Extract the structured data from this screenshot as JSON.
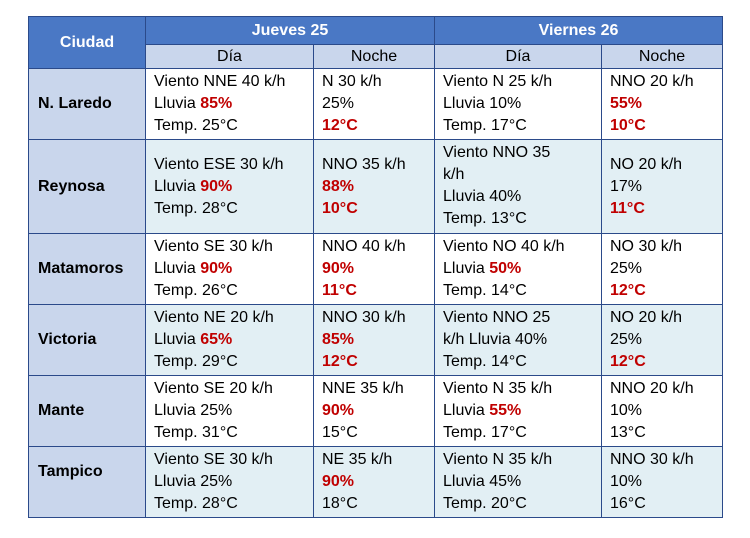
{
  "header": {
    "ciudad": "Ciudad",
    "day1": "Jueves 25",
    "day2": "Viernes 26",
    "dia": "Día",
    "noche": "Noche"
  },
  "rows": [
    {
      "city": "N. Laredo",
      "d1_dia": [
        "Viento  NNE 40 k/h",
        "Lluvia  ",
        "85%",
        "Temp.  25°C"
      ],
      "d1_noche": [
        "N 30 k/h",
        "25%",
        "12°C"
      ],
      "d2_dia": [
        "Viento  N 25 k/h",
        "Lluvia   10%",
        "Temp.  17°C"
      ],
      "d2_noche": [
        "NNO 20 k/h",
        "55%",
        "10°C"
      ]
    },
    {
      "city": "Reynosa",
      "d1_dia": [
        "Viento  ESE 30 k/h",
        "Lluvia  ",
        "90%",
        "Temp.  28°C"
      ],
      "d1_noche": [
        "NNO 35 k/h",
        "88%",
        "10°C"
      ],
      "d2_dia": [
        "Viento  NNO 35",
        "k/h",
        "Lluvia   40%",
        "Temp.  13°C"
      ],
      "d2_noche": [
        "NO 20 k/h",
        "17%",
        "11°C"
      ]
    },
    {
      "city": "Matamoros",
      "d1_dia": [
        "Viento  SE 30 k/h",
        "Lluvia  ",
        "90%",
        "Temp.  26°C"
      ],
      "d1_noche": [
        "NNO 40 k/h",
        "90%",
        "11°C"
      ],
      "d2_dia": [
        "Viento  NO 40 k/h",
        "Lluvia  ",
        "50%",
        "Temp.  14°C"
      ],
      "d2_noche": [
        "NO 30 k/h",
        "25%",
        "12°C"
      ]
    },
    {
      "city": "Victoria",
      "d1_dia": [
        "Viento  NE 20 k/h",
        "Lluvia  ",
        "65%",
        "Temp.  29°C"
      ],
      "d1_noche": [
        "NNO 30 k/h",
        "85%",
        "12°C"
      ],
      "d2_dia": [
        "Viento  NNO 25",
        "k/h   Lluvia   40%",
        "Temp.  14°C"
      ],
      "d2_noche": [
        "NO 20 k/h",
        "25%",
        "12°C"
      ]
    },
    {
      "city": "Mante",
      "d1_dia": [
        "Viento  SE 20 k/h",
        "Lluvia   25%",
        "Temp.  31°C"
      ],
      "d1_noche": [
        "NNE 35 k/h",
        "90%",
        "15°C"
      ],
      "d2_dia": [
        "Viento  N 35 k/h",
        "Lluvia  ",
        "55%",
        "Temp.  17°C"
      ],
      "d2_noche": [
        "NNO 20 k/h",
        "10%",
        "13°C"
      ]
    },
    {
      "city": "Tampico",
      "d1_dia": [
        "Viento  SE 30 k/h",
        "Lluvia   25%",
        "Temp.  28°C"
      ],
      "d1_noche": [
        "NE 35 k/h",
        "90%",
        "18°C"
      ],
      "d2_dia": [
        "Viento  N 35 k/h",
        "Lluvia   45%",
        "Temp.  20°C"
      ],
      "d2_noche": [
        "NNO 30 k/h",
        "10%",
        "16°C"
      ]
    }
  ]
}
